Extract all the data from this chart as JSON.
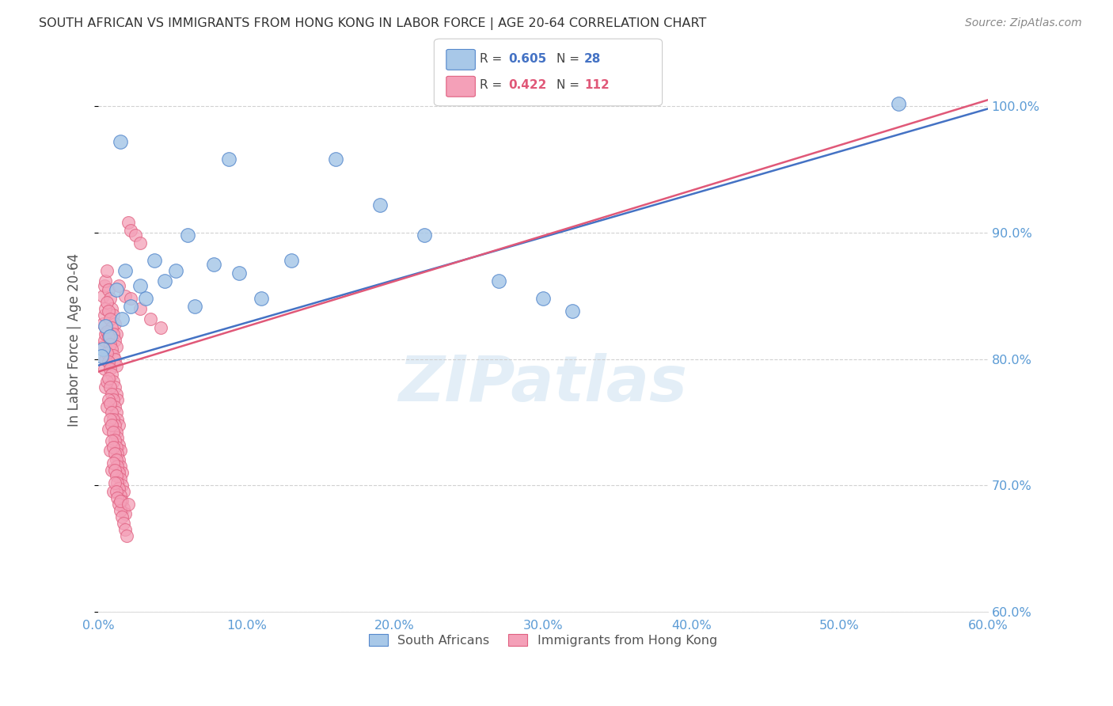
{
  "title": "SOUTH AFRICAN VS IMMIGRANTS FROM HONG KONG IN LABOR FORCE | AGE 20-64 CORRELATION CHART",
  "source": "Source: ZipAtlas.com",
  "ylabel": "In Labor Force | Age 20-64",
  "watermark": "ZIPatlas",
  "blue_R": 0.605,
  "blue_N": 28,
  "pink_R": 0.422,
  "pink_N": 112,
  "xlim": [
    0.0,
    0.6
  ],
  "ylim": [
    0.6,
    1.03
  ],
  "ytick_vals": [
    0.6,
    0.7,
    0.8,
    0.9,
    1.0
  ],
  "ytick_labels": [
    "60.0%",
    "70.0%",
    "80.0%",
    "90.0%",
    "100.0%"
  ],
  "xtick_vals": [
    0.0,
    0.1,
    0.2,
    0.3,
    0.4,
    0.5,
    0.6
  ],
  "xtick_labels": [
    "0.0%",
    "10.0%",
    "20.0%",
    "30.0%",
    "40.0%",
    "50.0%",
    "60.0%"
  ],
  "blue_color": "#a8c8e8",
  "pink_color": "#f4a0b8",
  "blue_edge_color": "#5588cc",
  "pink_edge_color": "#e06080",
  "blue_line_color": "#4472c4",
  "pink_line_color": "#e05878",
  "axis_label_color": "#5b9bd5",
  "grid_color": "#cccccc",
  "title_color": "#333333",
  "source_color": "#888888",
  "blue_x": [
    0.003,
    0.005,
    0.008,
    0.012,
    0.016,
    0.018,
    0.022,
    0.028,
    0.032,
    0.038,
    0.045,
    0.052,
    0.065,
    0.078,
    0.088,
    0.095,
    0.11,
    0.13,
    0.16,
    0.19,
    0.22,
    0.27,
    0.3,
    0.32,
    0.54,
    0.002,
    0.015,
    0.06
  ],
  "blue_y": [
    0.808,
    0.826,
    0.818,
    0.855,
    0.832,
    0.87,
    0.842,
    0.858,
    0.848,
    0.878,
    0.862,
    0.87,
    0.842,
    0.875,
    0.958,
    0.868,
    0.848,
    0.878,
    0.958,
    0.922,
    0.898,
    0.862,
    0.848,
    0.838,
    1.002,
    0.802,
    0.972,
    0.898
  ],
  "pink_x": [
    0.003,
    0.004,
    0.005,
    0.006,
    0.007,
    0.008,
    0.009,
    0.01,
    0.011,
    0.012,
    0.003,
    0.004,
    0.005,
    0.006,
    0.007,
    0.008,
    0.009,
    0.01,
    0.011,
    0.012,
    0.003,
    0.004,
    0.005,
    0.006,
    0.007,
    0.008,
    0.009,
    0.01,
    0.011,
    0.012,
    0.004,
    0.005,
    0.006,
    0.007,
    0.008,
    0.009,
    0.01,
    0.011,
    0.012,
    0.013,
    0.005,
    0.006,
    0.007,
    0.008,
    0.009,
    0.01,
    0.011,
    0.012,
    0.013,
    0.014,
    0.006,
    0.007,
    0.008,
    0.009,
    0.01,
    0.011,
    0.012,
    0.013,
    0.014,
    0.015,
    0.007,
    0.008,
    0.009,
    0.01,
    0.011,
    0.012,
    0.013,
    0.014,
    0.015,
    0.016,
    0.008,
    0.009,
    0.01,
    0.011,
    0.012,
    0.013,
    0.014,
    0.015,
    0.016,
    0.017,
    0.009,
    0.01,
    0.011,
    0.012,
    0.013,
    0.014,
    0.015,
    0.016,
    0.017,
    0.018,
    0.01,
    0.011,
    0.012,
    0.013,
    0.014,
    0.015,
    0.016,
    0.017,
    0.018,
    0.019,
    0.02,
    0.022,
    0.025,
    0.028,
    0.014,
    0.018,
    0.022,
    0.028,
    0.035,
    0.042,
    0.015,
    0.02
  ],
  "pink_y": [
    0.85,
    0.858,
    0.862,
    0.87,
    0.855,
    0.848,
    0.84,
    0.835,
    0.828,
    0.82,
    0.828,
    0.835,
    0.84,
    0.845,
    0.838,
    0.832,
    0.825,
    0.82,
    0.815,
    0.81,
    0.81,
    0.815,
    0.82,
    0.822,
    0.818,
    0.812,
    0.808,
    0.803,
    0.8,
    0.795,
    0.792,
    0.8,
    0.805,
    0.798,
    0.792,
    0.788,
    0.782,
    0.778,
    0.772,
    0.768,
    0.778,
    0.782,
    0.785,
    0.778,
    0.772,
    0.768,
    0.762,
    0.758,
    0.752,
    0.748,
    0.762,
    0.768,
    0.765,
    0.758,
    0.752,
    0.748,
    0.742,
    0.738,
    0.732,
    0.728,
    0.745,
    0.752,
    0.748,
    0.742,
    0.736,
    0.73,
    0.725,
    0.72,
    0.715,
    0.71,
    0.728,
    0.735,
    0.73,
    0.725,
    0.72,
    0.715,
    0.71,
    0.705,
    0.7,
    0.695,
    0.712,
    0.718,
    0.712,
    0.708,
    0.702,
    0.698,
    0.692,
    0.688,
    0.682,
    0.678,
    0.695,
    0.702,
    0.695,
    0.69,
    0.685,
    0.68,
    0.675,
    0.67,
    0.665,
    0.66,
    0.908,
    0.902,
    0.898,
    0.892,
    0.858,
    0.85,
    0.848,
    0.84,
    0.832,
    0.825,
    0.688,
    0.685
  ],
  "blue_line_x0": 0.0,
  "blue_line_x1": 0.6,
  "blue_line_y0": 0.795,
  "blue_line_y1": 0.998,
  "pink_line_x0": 0.0,
  "pink_line_x1": 0.6,
  "pink_line_y0": 0.79,
  "pink_line_y1": 1.005
}
